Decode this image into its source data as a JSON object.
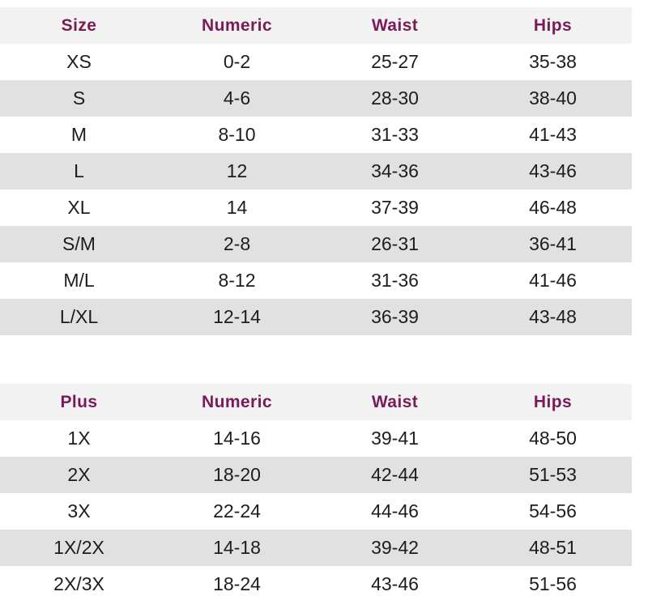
{
  "colors": {
    "header_text": "#7a1b57",
    "header_bg": "#f2f2f2",
    "stripe_bg": "#e1e1e1",
    "body_text": "#1d1d1d",
    "page_bg": "#ffffff"
  },
  "tables": [
    {
      "name": "standard-size-table",
      "headers": [
        "Size",
        "Numeric",
        "Waist",
        "Hips"
      ],
      "rows": [
        [
          "XS",
          "0-2",
          "25-27",
          "35-38"
        ],
        [
          "S",
          "4-6",
          "28-30",
          "38-40"
        ],
        [
          "M",
          "8-10",
          "31-33",
          "41-43"
        ],
        [
          "L",
          "12",
          "34-36",
          "43-46"
        ],
        [
          "XL",
          "14",
          "37-39",
          "46-48"
        ],
        [
          "S/M",
          "2-8",
          "26-31",
          "36-41"
        ],
        [
          "M/L",
          "8-12",
          "31-36",
          "41-46"
        ],
        [
          "L/XL",
          "12-14",
          "36-39",
          "43-48"
        ]
      ]
    },
    {
      "name": "plus-size-table",
      "headers": [
        "Plus",
        "Numeric",
        "Waist",
        "Hips"
      ],
      "rows": [
        [
          "1X",
          "14-16",
          "39-41",
          "48-50"
        ],
        [
          "2X",
          "18-20",
          "42-44",
          "51-53"
        ],
        [
          "3X",
          "22-24",
          "44-46",
          "54-56"
        ],
        [
          "1X/2X",
          "14-18",
          "39-42",
          "48-51"
        ],
        [
          "2X/3X",
          "18-24",
          "43-46",
          "51-56"
        ]
      ]
    }
  ]
}
